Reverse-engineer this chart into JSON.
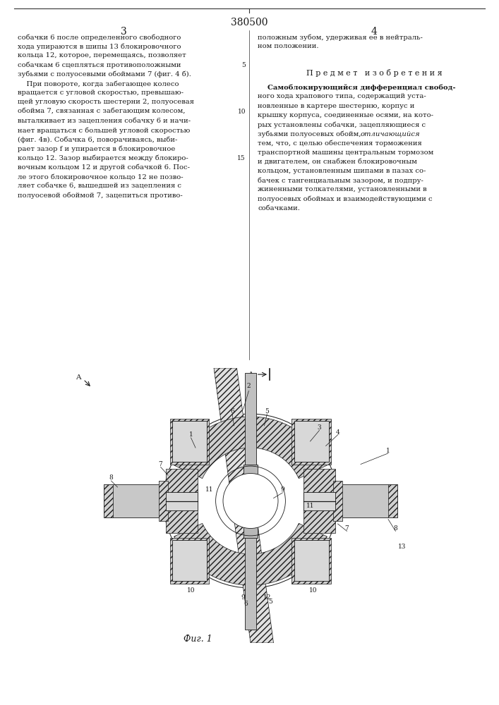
{
  "patent_number": "380500",
  "page_left": "3",
  "page_right": "4",
  "left_col_lines": [
    "собачки 6 после определенного свободного",
    "хода упираются в шипы 13 блокировочного",
    "кольца 12, которое, перемещаясь, позволяет",
    "собачкам 6 сцепляться противоположными",
    "зубьями с полуосевыми обоймами 7 (фиг. 4 б).",
    "    При повороте, когда забегающее колесо",
    "вращается с угловой скоростью, превышаю-",
    "щей угловую скорость шестерни 2, полуосевая",
    "обойма 7, связанная с забегающим колесом,",
    "выталкивает из зацепления собачку 6 и начи-",
    "нает вращаться с большей угловой скоростью",
    "(фиг. 4в). Собачка 6, поворачиваясь, выби-",
    "рает зазор f и упирается в блокировочное",
    "кольцо 12. Зазор выбирается между блокиро-",
    "вочным кольцом 12 и другой собачкой 6. Пос-",
    "ле этого блокировочное кольцо 12 не позво-",
    "ляет собачке 6, вышедшей из зацепления с",
    "полуосевой обоймой 7, зацепиться противо-"
  ],
  "line_numbers": {
    "5": 3,
    "10": 8,
    "15": 13
  },
  "right_top_lines": [
    "положным зубом, удерживая ее в нейтраль-",
    "ном положении."
  ],
  "predmet_title": "П р е д м е т   и з о б р е т е н и я",
  "predmet_lines": [
    [
      "    Самоблокирующийся дифференциал свобод-",
      "bold"
    ],
    [
      "ного хода храпового типа, содержащий уста-",
      "normal"
    ],
    [
      "новленные в картере шестерню, корпус и",
      "normal"
    ],
    [
      "крышку корпуса, соединенные осями, на кото-",
      "normal"
    ],
    [
      "рых установлены собачки, зацепляющиеся с",
      "normal"
    ],
    [
      "зубьями полуосевых обойм, ",
      "normal"
    ],
    [
      "тем, что, с целью обеспечения торможения",
      "normal"
    ],
    [
      "транспортной машины центральным тормозом",
      "normal"
    ],
    [
      "и двигателем, он снабжен блокировочным",
      "normal"
    ],
    [
      "кольцом, установленным шипами в пазах со-",
      "normal"
    ],
    [
      "бачек с тангенциальным зазором, и подпру-",
      "normal"
    ],
    [
      "жиненными толкателями, установленными в",
      "normal"
    ],
    [
      "полуосевых обоймах и взаимодействующими с",
      "normal"
    ],
    [
      "собачками.",
      "normal"
    ]
  ],
  "italic_word": "отличающийся",
  "fig_caption": "Фиг. 1",
  "bg_color": "#ffffff",
  "text_color": "#1a1a1a",
  "line_color": "#333333",
  "hatch_color": "#444444",
  "gray_fill": "#c8c8c8",
  "light_gray": "#e0e0e0",
  "dark_gray": "#888888"
}
